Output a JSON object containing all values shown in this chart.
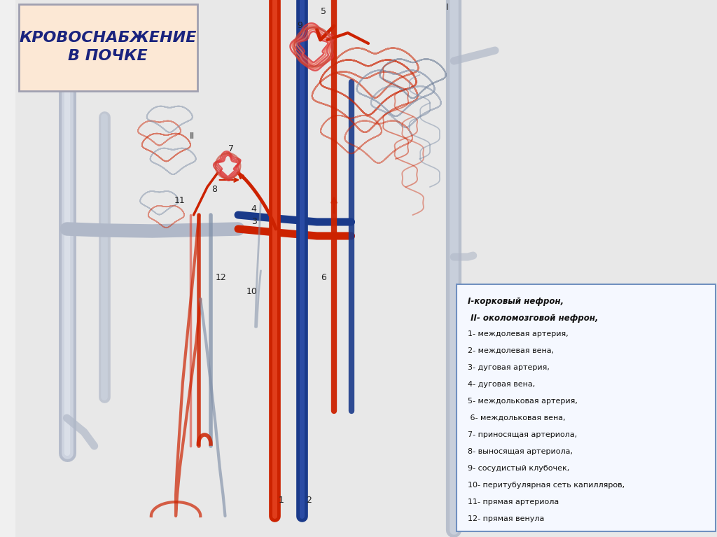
{
  "title": "КРОВОСНАБЖЕНИЕ\nВ ПОЧКЕ",
  "title_bg": "#fce8d5",
  "title_color": "#1a237e",
  "title_border": "#a0a0b0",
  "bg_color": "#f0f0f0",
  "legend_title_1": "I-корковый нефрон,",
  "legend_title_2": " II- околомозговой нефрон,",
  "legend_items": [
    "1- междолевая артерия,",
    "2- междолевая вена,",
    "3- дуговая артерия,",
    "4- дуговая вена,",
    "5- междольковая артерия,",
    " 6- междольковая вена,",
    "7- приносящая артериола,",
    "8- выносящая артериола,",
    "9- сосудистый клубочек,",
    "10- перитубулярная сеть капилляров,",
    "11- прямая артериола",
    "12- прямая венула"
  ],
  "artery_color": "#cc2200",
  "vein_color": "#1a3a8a",
  "tubule_color": "#8090a8",
  "glomerulus_color": "#dd3333",
  "label_color": "#222222",
  "legend_bg": "#f5f8ff",
  "legend_border": "#7090c0"
}
